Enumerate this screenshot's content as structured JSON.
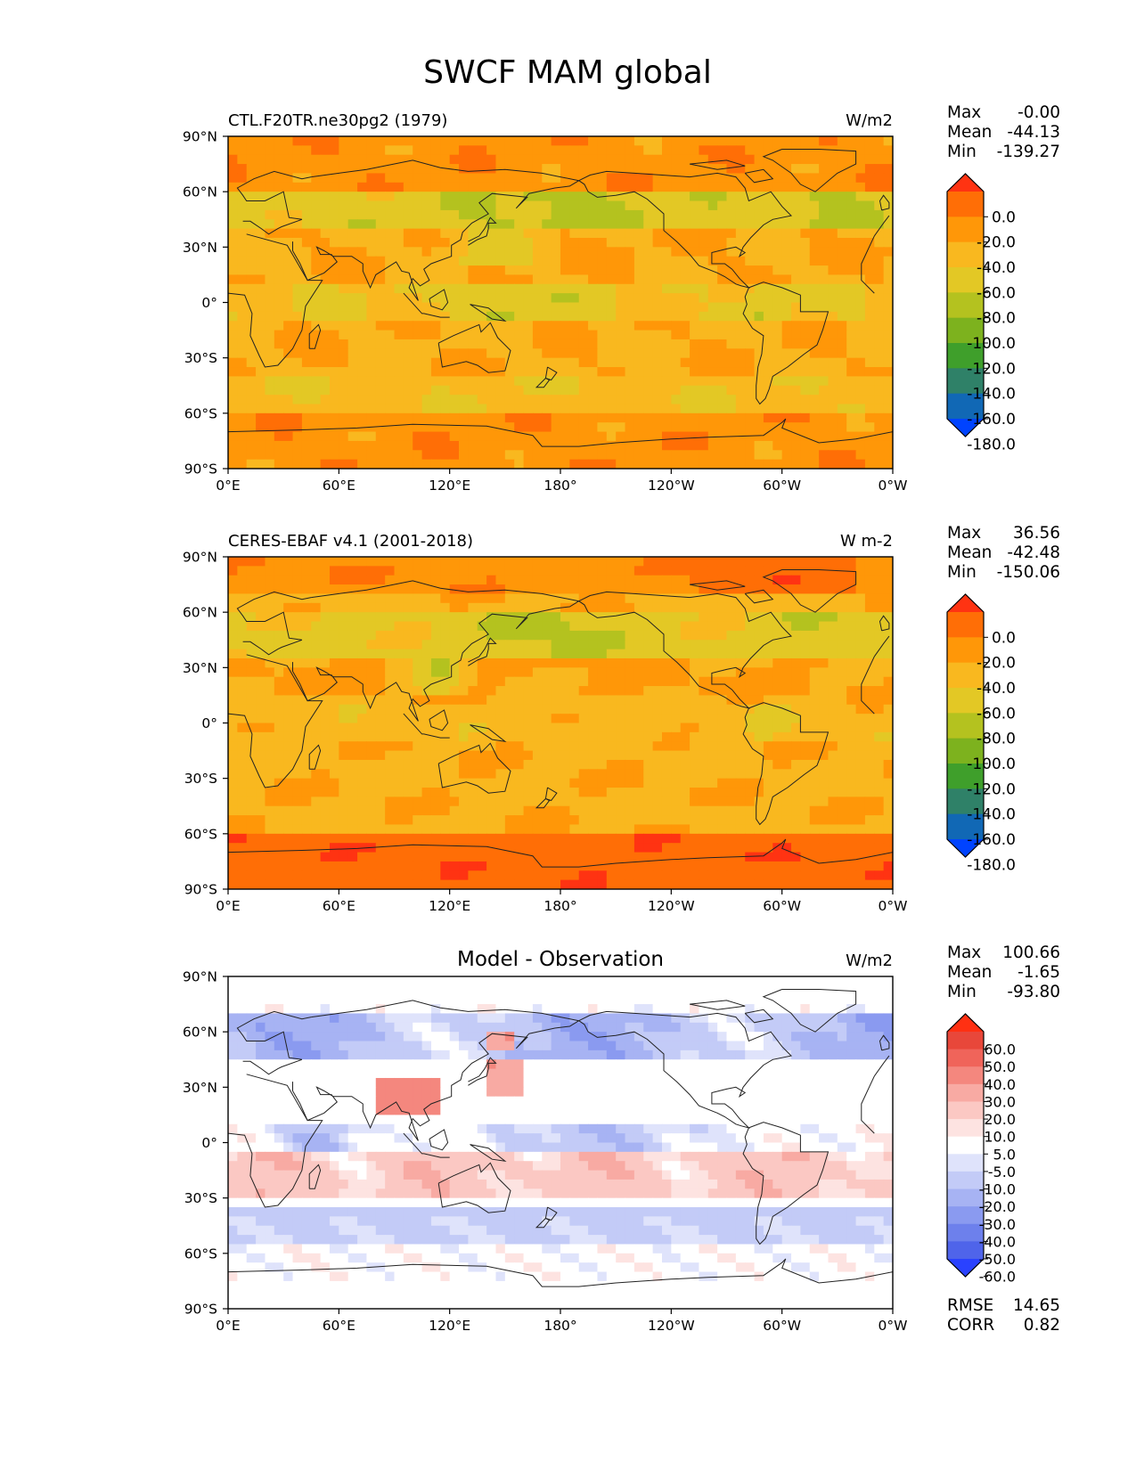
{
  "suptitle": "SWCF MAM global",
  "colors": {
    "frame": "#000000",
    "coast": "#222222",
    "ocean_mid": "#f9b21f",
    "land_edge": "#000000"
  },
  "chart_data": [
    {
      "type": "heatmap",
      "title_left": "CTL.F20TR.ne30pg2 (1979)",
      "title_center": "",
      "units": "W/m2",
      "x_ticks": [
        "0°E",
        "60°E",
        "120°E",
        "180°",
        "120°W",
        "60°W",
        "0°W"
      ],
      "y_ticks": [
        "90°N",
        "60°N",
        "30°N",
        "0°",
        "30°S",
        "60°S",
        "90°S"
      ],
      "xlim": [
        0,
        360
      ],
      "ylim": [
        -90,
        90
      ],
      "stats": [
        {
          "label": "Max",
          "value": "-0.00"
        },
        {
          "label": "Mean",
          "value": "-44.13"
        },
        {
          "label": "Min",
          "value": "-139.27"
        }
      ],
      "colorbar": {
        "levels": [
          "0.0",
          "-20.0",
          "-40.0",
          "-60.0",
          "-80.0",
          "-100.0",
          "-120.0",
          "-140.0",
          "-160.0",
          "-180.0"
        ],
        "colors": [
          "#ff3312",
          "#ff6e06",
          "#ff9708",
          "#f9b81f",
          "#e3c825",
          "#b4c21f",
          "#7db21e",
          "#3f9f2b",
          "#2f8168",
          "#1168b5",
          "#0043ff"
        ]
      }
    },
    {
      "type": "heatmap",
      "title_left": "CERES-EBAF v4.1 (2001-2018)",
      "title_center": "",
      "units": "W m-2",
      "x_ticks": [
        "0°E",
        "60°E",
        "120°E",
        "180°",
        "120°W",
        "60°W",
        "0°W"
      ],
      "y_ticks": [
        "90°N",
        "60°N",
        "30°N",
        "0°",
        "30°S",
        "60°S",
        "90°S"
      ],
      "xlim": [
        0,
        360
      ],
      "ylim": [
        -90,
        90
      ],
      "stats": [
        {
          "label": "Max",
          "value": "36.56"
        },
        {
          "label": "Mean",
          "value": "-42.48"
        },
        {
          "label": "Min",
          "value": "-150.06"
        }
      ],
      "colorbar": {
        "levels": [
          "0.0",
          "-20.0",
          "-40.0",
          "-60.0",
          "-80.0",
          "-100.0",
          "-120.0",
          "-140.0",
          "-160.0",
          "-180.0"
        ],
        "colors": [
          "#ff3312",
          "#ff6e06",
          "#ff9708",
          "#f9b81f",
          "#e3c825",
          "#b4c21f",
          "#7db21e",
          "#3f9f2b",
          "#2f8168",
          "#1168b5",
          "#0043ff"
        ]
      }
    },
    {
      "type": "heatmap",
      "title_left": "",
      "title_center": "Model - Observation",
      "units": "W/m2",
      "x_ticks": [
        "0°E",
        "60°E",
        "120°E",
        "180°",
        "120°W",
        "60°W",
        "0°W"
      ],
      "y_ticks": [
        "90°N",
        "60°N",
        "30°N",
        "0°",
        "30°S",
        "60°S",
        "90°S"
      ],
      "xlim": [
        0,
        360
      ],
      "ylim": [
        -90,
        90
      ],
      "stats": [
        {
          "label": "Max",
          "value": "100.66"
        },
        {
          "label": "Mean",
          "value": "-1.65"
        },
        {
          "label": "Min",
          "value": "-93.80"
        }
      ],
      "bottom_stats": [
        {
          "label": "RMSE",
          "value": "14.65"
        },
        {
          "label": "CORR",
          "value": "0.82"
        }
      ],
      "colorbar": {
        "levels": [
          "60.0",
          "50.0",
          "40.0",
          "30.0",
          "20.0",
          "10.0",
          "5.0",
          "-5.0",
          "-10.0",
          "-20.0",
          "-30.0",
          "-40.0",
          "-50.0",
          "-60.0"
        ],
        "colors": [
          "#ff3012",
          "#e8473a",
          "#f0645a",
          "#f4877e",
          "#f8aaa3",
          "#fbc8c3",
          "#fde3e1",
          "#ffffff",
          "#dfe3fb",
          "#c3cbf7",
          "#a7b3f3",
          "#8a9af0",
          "#6d80ec",
          "#4f64ea",
          "#2a42ff"
        ]
      }
    }
  ]
}
